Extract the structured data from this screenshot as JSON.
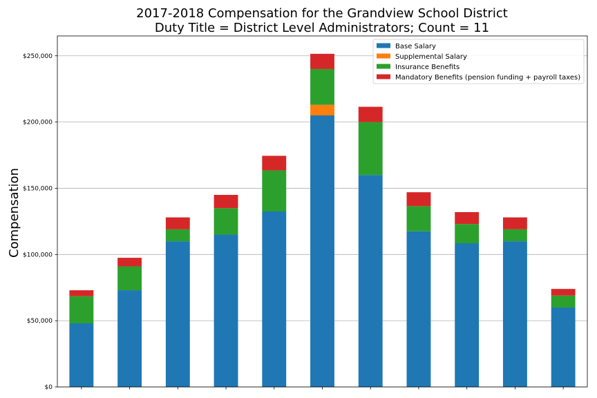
{
  "chart_data": {
    "type": "bar",
    "stacked": true,
    "title": "2017-2018 Compensation for the Grandview School District",
    "subtitle": "Duty Title = District Level Administrators; Count = 11",
    "xlabel": "",
    "ylabel": "Compensation",
    "ylim": [
      0,
      265000
    ],
    "yticks": [
      0,
      50000,
      100000,
      150000,
      200000,
      250000
    ],
    "ytick_labels": [
      "$0",
      "$50,000",
      "$100,000",
      "$150,000",
      "$200,000",
      "$250,000"
    ],
    "grid": "horizontal",
    "legend_position": "top-right",
    "categories": [
      "",
      "",
      "",
      "",
      "",
      "",
      "",
      "",
      "",
      "",
      ""
    ],
    "series": [
      {
        "name": "Base Salary",
        "color": "#1f77b4",
        "values": [
          48000,
          73000,
          110000,
          115000,
          132500,
          205000,
          160000,
          117500,
          108500,
          110000,
          60000
        ]
      },
      {
        "name": "Supplemental Salary",
        "color": "#ff7f0e",
        "values": [
          0,
          0,
          0,
          0,
          0,
          8000,
          0,
          0,
          0,
          0,
          0
        ]
      },
      {
        "name": "Insurance Benefits",
        "color": "#2ca02c",
        "values": [
          20500,
          18000,
          9000,
          20000,
          31000,
          27000,
          40000,
          19000,
          14500,
          9000,
          9000
        ]
      },
      {
        "name": "Mandatory Benefits (pension funding + payroll taxes)",
        "color": "#d62728",
        "values": [
          4500,
          6500,
          9000,
          10000,
          11000,
          11500,
          11500,
          10500,
          9000,
          9000,
          5000
        ]
      }
    ]
  }
}
